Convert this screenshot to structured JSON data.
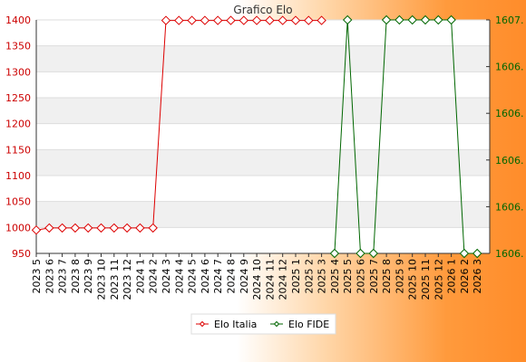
{
  "chart_data": {
    "type": "line",
    "title": "Grafico Elo",
    "categories": [
      "2023 5",
      "2023 6",
      "2023 7",
      "2023 8",
      "2023 9",
      "2023 10",
      "2023 11",
      "2023 12",
      "2024 1",
      "2024 2",
      "2024 3",
      "2024 4",
      "2024 5",
      "2024 6",
      "2024 7",
      "2024 8",
      "2024 9",
      "2024 10",
      "2024 11",
      "2024 12",
      "2025 1",
      "2025 2",
      "2025 3",
      "2025 4",
      "2025 5",
      "2025 6",
      "2025 7",
      "2025 8",
      "2025 9",
      "2025 10",
      "2025 11",
      "2025 12",
      "2026 1",
      "2026 2",
      "2026 3"
    ],
    "left_axis": {
      "ylim": [
        950,
        1400
      ],
      "ticks": [
        950,
        1000,
        1050,
        1100,
        1150,
        1200,
        1250,
        1300,
        1350,
        1400
      ]
    },
    "right_axis": {
      "ylim": [
        1606.0,
        1607.0
      ],
      "ticks": [
        "1606.",
        "1606.",
        "1606.",
        "1606.",
        "1606.",
        "1607."
      ]
    },
    "series": [
      {
        "name": "Elo Italia",
        "axis": "left",
        "color": "#dd0000",
        "values": [
          995,
          999,
          999,
          999,
          999,
          999,
          999,
          999,
          999,
          999,
          1399,
          1399,
          1399,
          1399,
          1399,
          1399,
          1399,
          1399,
          1399,
          1399,
          1399,
          1399,
          1399,
          null,
          null,
          null,
          null,
          null,
          null,
          null,
          null,
          null,
          null,
          null,
          null
        ]
      },
      {
        "name": "Elo FIDE",
        "axis": "right",
        "color": "#006600",
        "values": [
          null,
          null,
          null,
          null,
          null,
          null,
          null,
          null,
          null,
          null,
          null,
          null,
          null,
          null,
          null,
          null,
          null,
          null,
          null,
          null,
          null,
          null,
          null,
          1606.0,
          1607.0,
          1606.0,
          1606.0,
          1607.0,
          1607.0,
          1607.0,
          1607.0,
          1607.0,
          1607.0,
          1606.0,
          1606.0
        ]
      }
    ],
    "legend_position": "bottom-center",
    "grid": true
  }
}
